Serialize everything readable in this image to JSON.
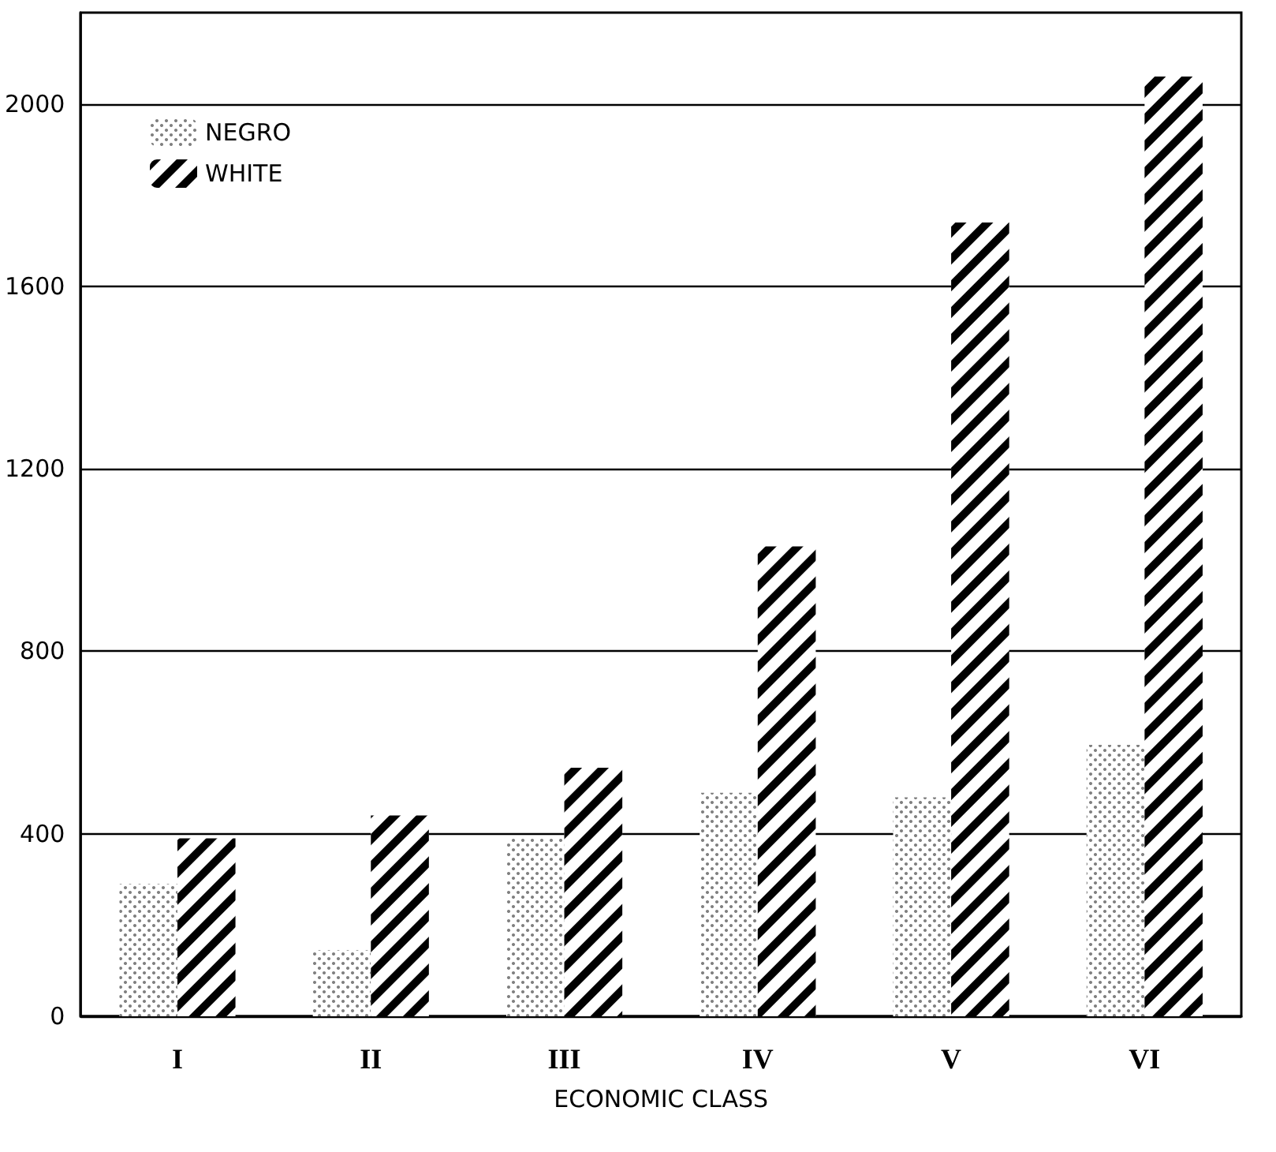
{
  "chart_data": {
    "type": "bar",
    "xlabel": "ECONOMIC CLASS",
    "categories": [
      "I",
      "II",
      "III",
      "IV",
      "V",
      "VI"
    ],
    "series": [
      {
        "name": "NEGRO",
        "color": "#808080",
        "values": [
          290,
          145,
          390,
          490,
          480,
          595
        ]
      },
      {
        "name": "WHITE",
        "color": "#000000",
        "values": [
          390,
          440,
          545,
          1030,
          1740,
          2060
        ]
      }
    ],
    "ylim": [
      0,
      2200
    ],
    "yticks": [
      0,
      400,
      800,
      1200,
      1600,
      2000
    ],
    "grid": "y",
    "legend": "top left"
  }
}
